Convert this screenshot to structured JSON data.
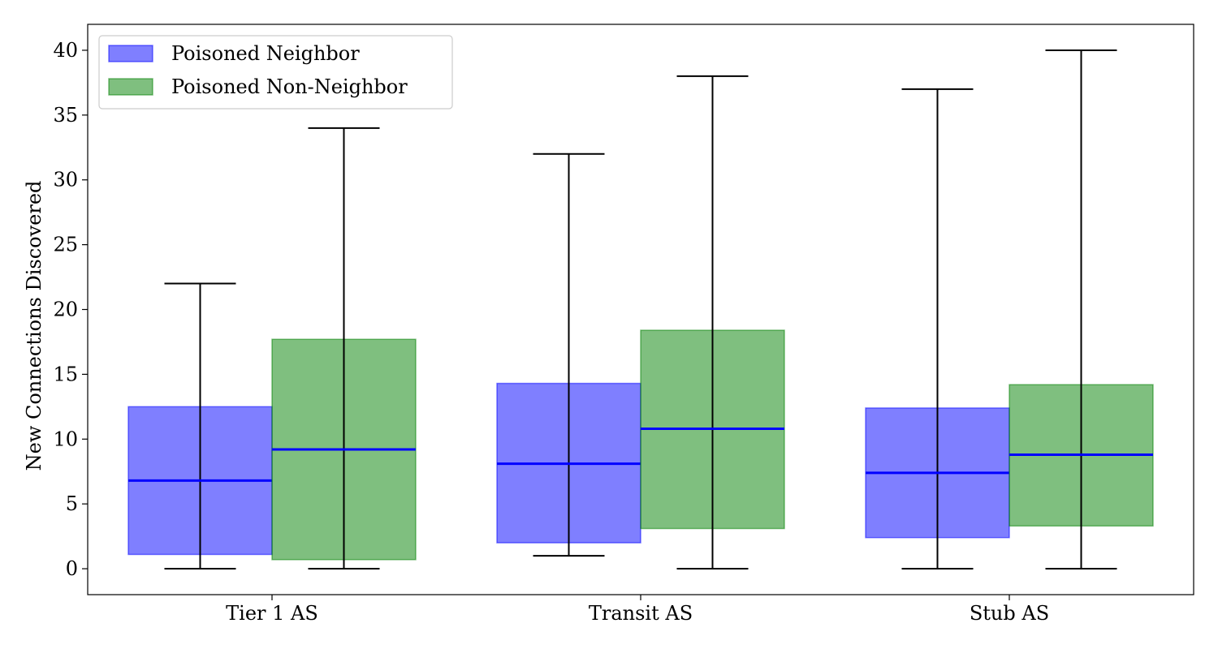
{
  "chart_data": {
    "type": "boxplot",
    "title": "",
    "xlabel": "",
    "ylabel": "New Connections Discovered",
    "ylim": [
      -2,
      42
    ],
    "yticks": [
      0,
      5,
      10,
      15,
      20,
      25,
      30,
      35,
      40
    ],
    "categories": [
      "Tier 1 AS",
      "Transit AS",
      "Stub AS"
    ],
    "legend_position": "top-left",
    "grid": false,
    "series": [
      {
        "name": "Poisoned Neighbor",
        "color": "#0000ff",
        "stats": [
          {
            "whisker_low": 0,
            "q1": 1.1,
            "median": 6.8,
            "q3": 12.5,
            "whisker_high": 22
          },
          {
            "whisker_low": 1,
            "q1": 2.0,
            "median": 8.1,
            "q3": 14.3,
            "whisker_high": 32
          },
          {
            "whisker_low": 0,
            "q1": 2.4,
            "median": 7.4,
            "q3": 12.4,
            "whisker_high": 37
          }
        ]
      },
      {
        "name": "Poisoned Non-Neighbor",
        "color": "#008000",
        "stats": [
          {
            "whisker_low": 0,
            "q1": 0.7,
            "median": 9.2,
            "q3": 17.7,
            "whisker_high": 34
          },
          {
            "whisker_low": 0,
            "q1": 3.1,
            "median": 10.8,
            "q3": 18.4,
            "whisker_high": 38
          },
          {
            "whisker_low": 0,
            "q1": 3.3,
            "median": 8.8,
            "q3": 14.2,
            "whisker_high": 40
          }
        ]
      }
    ],
    "median_color": "#0000ff",
    "whisker_color": "#000000"
  }
}
